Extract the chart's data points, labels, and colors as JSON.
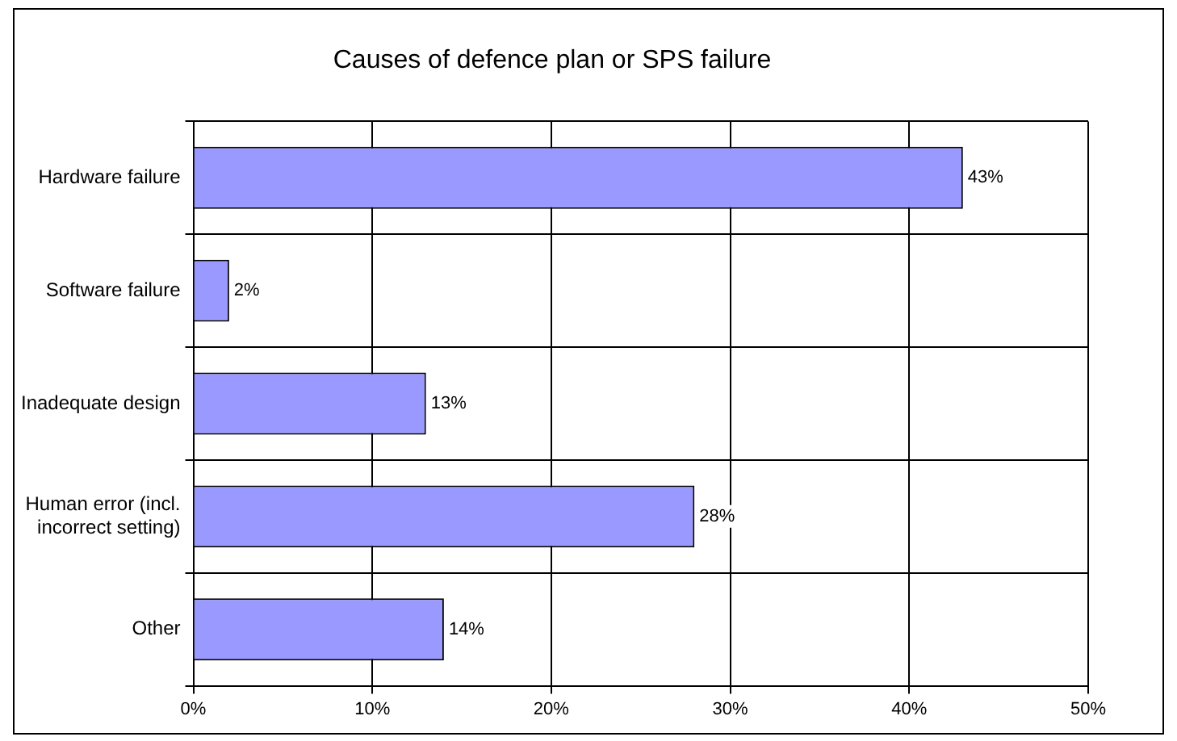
{
  "chart_data": {
    "type": "bar",
    "orientation": "horizontal",
    "title": "Causes of defence plan or SPS failure",
    "categories": [
      "Hardware failure",
      "Software failure",
      "Inadequate design",
      "Human error (incl. incorrect setting)",
      "Other"
    ],
    "values": [
      43,
      2,
      13,
      28,
      14
    ],
    "value_labels": [
      "43%",
      "2%",
      "13%",
      "28%",
      "14%"
    ],
    "color": "#9999ff",
    "xlim": [
      0,
      50
    ],
    "xticks": [
      {
        "value": 0,
        "label": "0%"
      },
      {
        "value": 10,
        "label": "10%"
      },
      {
        "value": 20,
        "label": "20%"
      },
      {
        "value": 30,
        "label": "30%"
      },
      {
        "value": 40,
        "label": "40%"
      },
      {
        "value": 50,
        "label": "50%"
      }
    ],
    "grid": true,
    "legend": false
  }
}
